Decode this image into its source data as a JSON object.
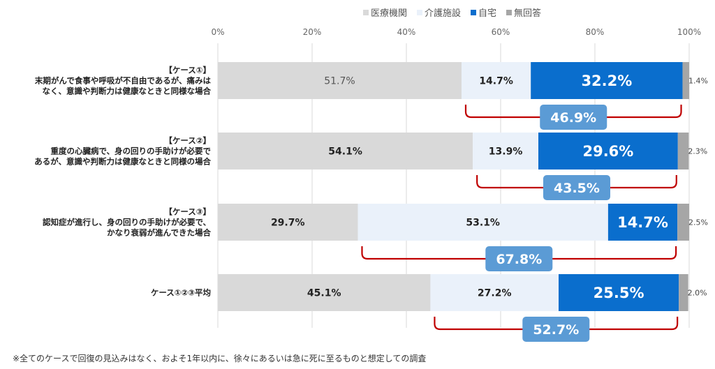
{
  "chart_data": {
    "type": "bar",
    "orientation": "horizontal",
    "stacked": true,
    "xlim": [
      0,
      100
    ],
    "x_ticks": [
      "0%",
      "20%",
      "40%",
      "60%",
      "80%",
      "100%"
    ],
    "categories": [
      [
        "【ケース①】",
        "末期がんで食事や呼吸が不自由であるが、痛みは",
        "なく、意識や判断力は健康なときと同様な場合"
      ],
      [
        "【ケース②】",
        "重度の心臓病で、身の回りの手助けが必要で",
        "あるが、意識や判断力は健康なときと同様の場合"
      ],
      [
        "【ケース③】",
        "認知症が進行し、身の回りの手助けが必要で、",
        "かなり衰弱が進んできた場合"
      ],
      [
        "ケース①②③平均"
      ]
    ],
    "series": [
      {
        "name": "医療機関",
        "color": "#d9d9d9",
        "values": [
          51.7,
          54.1,
          29.7,
          45.1
        ],
        "labels": [
          "51.7%",
          "54.1%",
          "29.7%",
          "45.1%"
        ]
      },
      {
        "name": "介護施設",
        "color": "#eaf1fa",
        "values": [
          14.7,
          13.9,
          53.1,
          27.2
        ],
        "labels": [
          "14.7%",
          "13.9%",
          "53.1%",
          "27.2%"
        ]
      },
      {
        "name": "自宅",
        "color": "#0a6ecd",
        "values": [
          32.2,
          29.6,
          14.7,
          25.5
        ],
        "labels": [
          "32.2%",
          "29.6%",
          "14.7%",
          "25.5%"
        ]
      },
      {
        "name": "無回答",
        "color": "#a6a6a6",
        "values": [
          1.4,
          2.3,
          2.5,
          2.0
        ],
        "labels": [
          "1.4%",
          "2.3%",
          "2.5%",
          "2.0%"
        ]
      }
    ],
    "brackets": [
      {
        "label": "46.9%",
        "start_series": 1
      },
      {
        "label": "43.5%",
        "start_series": 1
      },
      {
        "label": "67.8%",
        "start_series": 1
      },
      {
        "label": "52.7%",
        "start_series": 1
      }
    ],
    "grid": true,
    "legend_position": "top"
  },
  "footnote": "※全てのケースで回復の見込みはなく、およそ1年以内に、徐々にあるいは急に死に至るものと想定しての調査"
}
